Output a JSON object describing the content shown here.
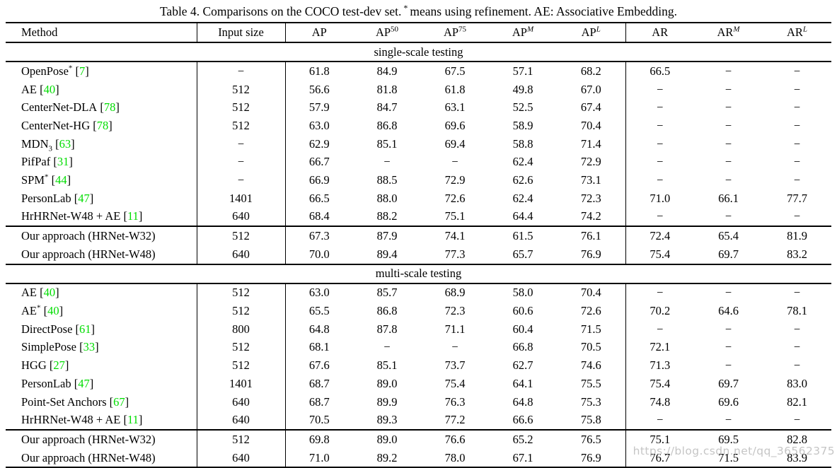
{
  "caption": {
    "part1": "Table 4. Comparisons on the COCO test-dev set.",
    "star": "*",
    "part2": "means using refinement. AE: Associative Embedding."
  },
  "watermark": {
    "text": "https://blog.csdn.net/qq_36562375"
  },
  "colors": {
    "citation_green": "#00dd00",
    "rule_black": "#000000",
    "watermark_gray": "#b8b8b8"
  },
  "table": {
    "columns": [
      {
        "text": "Method"
      },
      {
        "text": "Input size"
      },
      {
        "text": "AP"
      },
      {
        "text": "AP",
        "sup": "50"
      },
      {
        "text": "AP",
        "sup": "75"
      },
      {
        "text": "AP",
        "sup": "M",
        "italic": true
      },
      {
        "text": "AP",
        "sup": "L",
        "italic": true
      },
      {
        "text": "AR"
      },
      {
        "text": "AR",
        "sup": "M",
        "italic": true
      },
      {
        "text": "AR",
        "sup": "L",
        "italic": true
      }
    ],
    "sections": [
      {
        "header": "single-scale testing",
        "rows": [
          {
            "method": "OpenPose",
            "sup": "*",
            "cite": "7",
            "input": "−",
            "values": [
              "61.8",
              "84.9",
              "67.5",
              "57.1",
              "68.2",
              "66.5",
              "−",
              "−"
            ]
          },
          {
            "method": "AE",
            "cite": "40",
            "input": "512",
            "values": [
              "56.6",
              "81.8",
              "61.8",
              "49.8",
              "67.0",
              "−",
              "−",
              "−"
            ]
          },
          {
            "method": "CenterNet-DLA",
            "cite": "78",
            "input": "512",
            "values": [
              "57.9",
              "84.7",
              "63.1",
              "52.5",
              "67.4",
              "−",
              "−",
              "−"
            ]
          },
          {
            "method": "CenterNet-HG",
            "cite": "78",
            "input": "512",
            "values": [
              "63.0",
              "86.8",
              "69.6",
              "58.9",
              "70.4",
              "−",
              "−",
              "−"
            ]
          },
          {
            "method": "MDN",
            "sub": "3",
            "cite": "63",
            "input": "−",
            "values": [
              "62.9",
              "85.1",
              "69.4",
              "58.8",
              "71.4",
              "−",
              "−",
              "−"
            ]
          },
          {
            "method": "PifPaf",
            "cite": "31",
            "input": "−",
            "values": [
              "66.7",
              "−",
              "−",
              "62.4",
              "72.9",
              "−",
              "−",
              "−"
            ]
          },
          {
            "method": "SPM",
            "sup": "*",
            "cite": "44",
            "input": "−",
            "values": [
              "66.9",
              "88.5",
              "72.9",
              "62.6",
              "73.1",
              "−",
              "−",
              "−"
            ]
          },
          {
            "method": "PersonLab",
            "cite": "47",
            "input": "1401",
            "values": [
              "66.5",
              "88.0",
              "72.6",
              "62.4",
              "72.3",
              "71.0",
              "66.1",
              "77.7"
            ]
          },
          {
            "method": "HrHRNet-W48 + AE",
            "cite": "11",
            "input": "640",
            "values": [
              "68.4",
              "88.2",
              "75.1",
              "64.4",
              "74.2",
              "−",
              "−",
              "−"
            ]
          }
        ],
        "ours": [
          {
            "method": "Our approach (HRNet-W32)",
            "input": "512",
            "values": [
              "67.3",
              "87.9",
              "74.1",
              "61.5",
              "76.1",
              "72.4",
              "65.4",
              "81.9"
            ]
          },
          {
            "method": "Our approach (HRNet-W48)",
            "input": "640",
            "values": [
              "70.0",
              "89.4",
              "77.3",
              "65.7",
              "76.9",
              "75.4",
              "69.7",
              "83.2"
            ]
          }
        ]
      },
      {
        "header": "multi-scale testing",
        "rows": [
          {
            "method": "AE",
            "cite": "40",
            "input": "512",
            "values": [
              "63.0",
              "85.7",
              "68.9",
              "58.0",
              "70.4",
              "−",
              "−",
              "−"
            ]
          },
          {
            "method": "AE",
            "sup": "*",
            "cite": "40",
            "input": "512",
            "values": [
              "65.5",
              "86.8",
              "72.3",
              "60.6",
              "72.6",
              "70.2",
              "64.6",
              "78.1"
            ]
          },
          {
            "method": "DirectPose",
            "cite": "61",
            "input": "800",
            "values": [
              "64.8",
              "87.8",
              "71.1",
              "60.4",
              "71.5",
              "−",
              "−",
              "−"
            ]
          },
          {
            "method": "SimplePose",
            "cite": "33",
            "input": "512",
            "values": [
              "68.1",
              "−",
              "−",
              "66.8",
              "70.5",
              "72.1",
              "−",
              "−"
            ]
          },
          {
            "method": "HGG",
            "cite": "27",
            "input": "512",
            "values": [
              "67.6",
              "85.1",
              "73.7",
              "62.7",
              "74.6",
              "71.3",
              "−",
              "−"
            ]
          },
          {
            "method": "PersonLab",
            "cite": "47",
            "input": "1401",
            "values": [
              "68.7",
              "89.0",
              "75.4",
              "64.1",
              "75.5",
              "75.4",
              "69.7",
              "83.0"
            ]
          },
          {
            "method": "Point-Set Anchors",
            "cite": "67",
            "input": "640",
            "values": [
              "68.7",
              "89.9",
              "76.3",
              "64.8",
              "75.3",
              "74.8",
              "69.6",
              "82.1"
            ]
          },
          {
            "method": "HrHRNet-W48 + AE",
            "cite": "11",
            "input": "640",
            "values": [
              "70.5",
              "89.3",
              "77.2",
              "66.6",
              "75.8",
              "−",
              "−",
              "−"
            ]
          }
        ],
        "ours": [
          {
            "method": "Our approach (HRNet-W32)",
            "input": "512",
            "values": [
              "69.8",
              "89.0",
              "76.6",
              "65.2",
              "76.5",
              "75.1",
              "69.5",
              "82.8"
            ]
          },
          {
            "method": "Our approach (HRNet-W48)",
            "input": "640",
            "values": [
              "71.0",
              "89.2",
              "78.0",
              "67.1",
              "76.9",
              "76.7",
              "71.5",
              "83.9"
            ]
          }
        ]
      }
    ]
  }
}
